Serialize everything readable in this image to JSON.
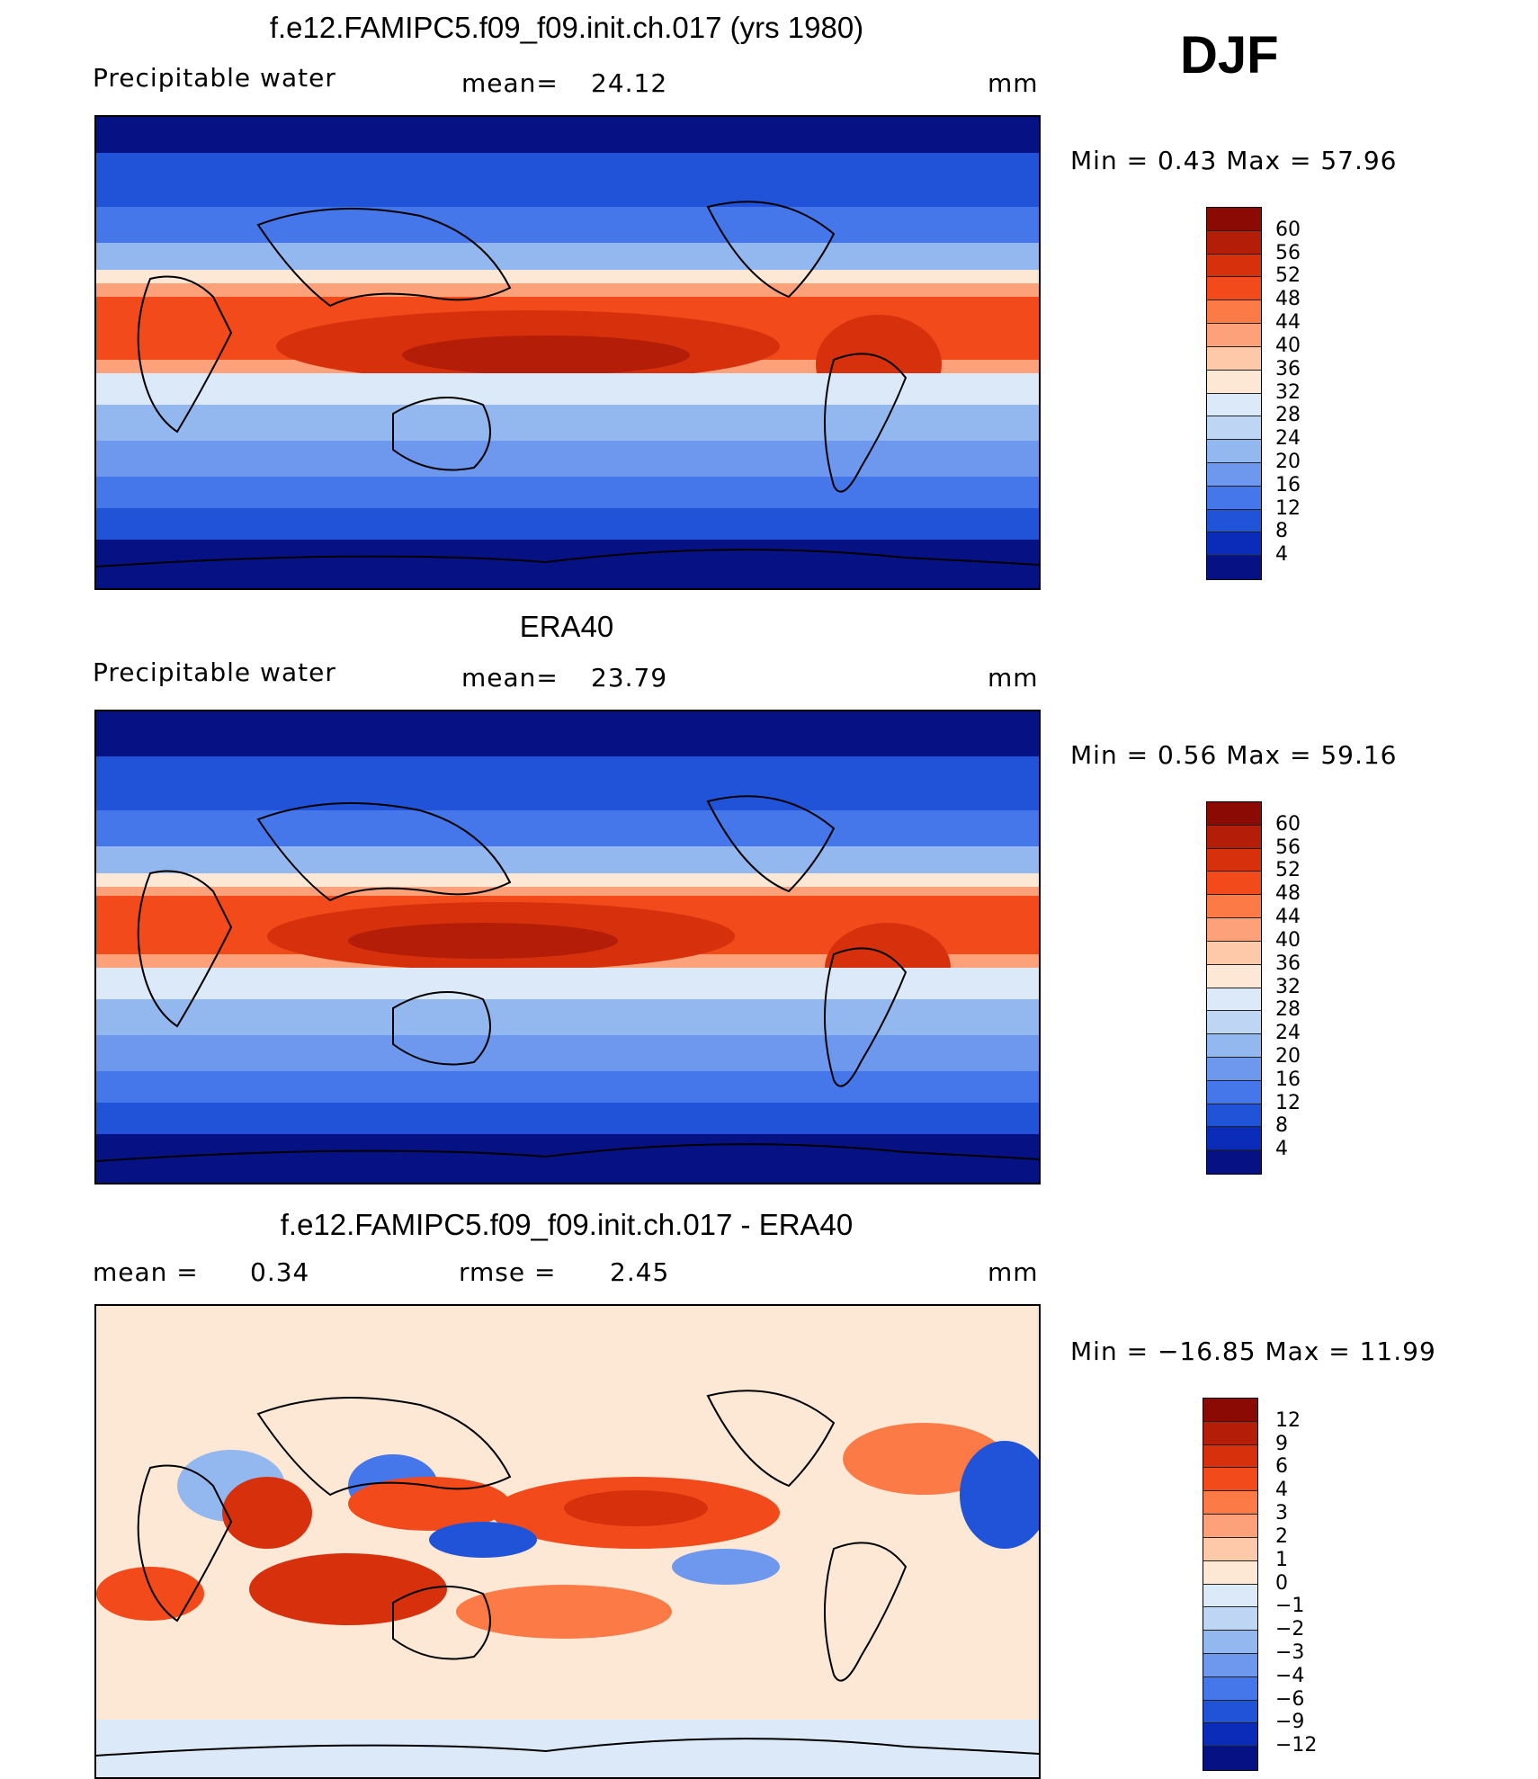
{
  "season": "DJF",
  "panels": [
    {
      "title": "f.e12.FAMIPC5.f09_f09.init.ch.017 (yrs 1980)",
      "variable": "Precipitable  water",
      "stat1_label": "mean=",
      "stat1_value": "24.12",
      "units": "mm",
      "minmax": "Min  =     0.43  Max  =     57.96",
      "colorbar": {
        "levels": [
          "60",
          "56",
          "52",
          "48",
          "44",
          "40",
          "36",
          "32",
          "28",
          "24",
          "20",
          "16",
          "12",
          "8",
          "4"
        ],
        "colors": [
          "#8b0a04",
          "#b41e08",
          "#d6310c",
          "#f24a1a",
          "#fb7a46",
          "#fca17a",
          "#fdc9a8",
          "#fde8d6",
          "#dbe9f8",
          "#bed5f4",
          "#93b8f0",
          "#6e98ee",
          "#4577ea",
          "#2153d8",
          "#0a2cb8",
          "#061284"
        ]
      }
    },
    {
      "title": "ERA40",
      "variable": "Precipitable  water",
      "stat1_label": "mean=",
      "stat1_value": "23.79",
      "units": "mm",
      "minmax": "Min  =     0.56  Max  =     59.16",
      "colorbar": {
        "levels": [
          "60",
          "56",
          "52",
          "48",
          "44",
          "40",
          "36",
          "32",
          "28",
          "24",
          "20",
          "16",
          "12",
          "8",
          "4"
        ],
        "colors": [
          "#8b0a04",
          "#b41e08",
          "#d6310c",
          "#f24a1a",
          "#fb7a46",
          "#fca17a",
          "#fdc9a8",
          "#fde8d6",
          "#dbe9f8",
          "#bed5f4",
          "#93b8f0",
          "#6e98ee",
          "#4577ea",
          "#2153d8",
          "#0a2cb8",
          "#061284"
        ]
      }
    },
    {
      "title": "f.e12.FAMIPC5.f09_f09.init.ch.017 - ERA40",
      "stat0_label": "mean  =",
      "stat0_value": "0.34",
      "stat1_label": "rmse  =",
      "stat1_value": "2.45",
      "units": "mm",
      "minmax": "Min  = −16.85  Max  =     11.99",
      "colorbar": {
        "levels": [
          "12",
          "9",
          "6",
          "4",
          "3",
          "2",
          "1",
          "0",
          "−1",
          "−2",
          "−3",
          "−4",
          "−6",
          "−9",
          "−12"
        ],
        "colors": [
          "#8b0a04",
          "#b41e08",
          "#d6310c",
          "#f24a1a",
          "#fb7a46",
          "#fca17a",
          "#fdc9a8",
          "#fde8d6",
          "#dbe9f8",
          "#bed5f4",
          "#93b8f0",
          "#6e98ee",
          "#4577ea",
          "#2153d8",
          "#0a2cb8",
          "#061284"
        ]
      }
    }
  ]
}
